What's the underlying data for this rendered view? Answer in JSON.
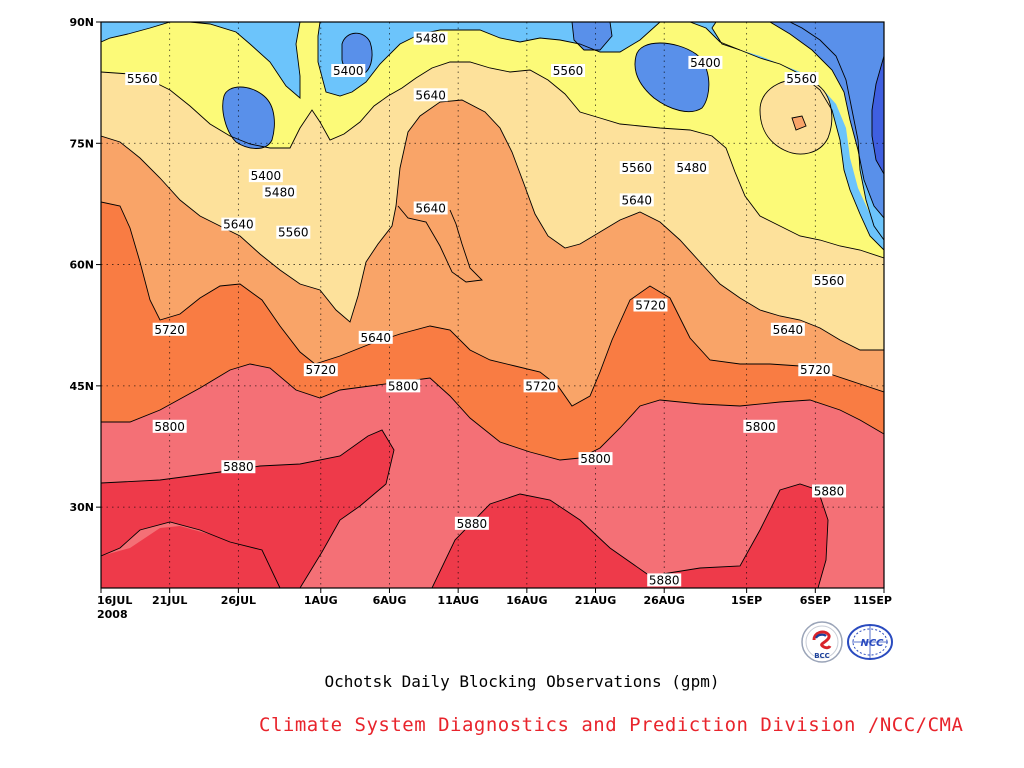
{
  "chart_data": {
    "type": "contour",
    "title": "Ochotsk Daily Blocking Observations (gpm)",
    "x_tick_labels": [
      "16JUL",
      "21JUL",
      "26JUL",
      "1AUG",
      "6AUG",
      "11AUG",
      "16AUG",
      "21AUG",
      "26AUG",
      "1SEP",
      "6SEP",
      "11SEP"
    ],
    "x_start_year": "2008",
    "x_range": [
      "2008-07-16",
      "2008-09-11"
    ],
    "y_tick_labels": [
      "90N",
      "75N",
      "60N",
      "45N",
      "30N"
    ],
    "y_range": [
      20,
      90
    ],
    "y_unit": "degrees latitude",
    "grid": true,
    "contour_levels": [
      5400,
      5480,
      5560,
      5640,
      5720,
      5800,
      5880
    ],
    "fill_colors": {
      "below_5400": "#3f5fe0",
      "5400_5480": "#5990ea",
      "5480_5560": "#6cc4fb",
      "5560_5640": "#fcfa78",
      "5640_5720": "#fde19b",
      "5720_5800": "#f9a468",
      "5800_5880": "#f97c43",
      "5880_5960": "#f47076",
      "above_5960": "#ee3a4a"
    },
    "contour_labels": [
      {
        "value": "5480",
        "date": "2008-08-09",
        "lat": 88
      },
      {
        "value": "5400",
        "date": "2008-08-03",
        "lat": 84
      },
      {
        "value": "5400",
        "date": "2008-08-29",
        "lat": 85
      },
      {
        "value": "5560",
        "date": "2008-07-19",
        "lat": 83
      },
      {
        "value": "5560",
        "date": "2008-08-19",
        "lat": 84
      },
      {
        "value": "5560",
        "date": "2008-09-05",
        "lat": 83
      },
      {
        "value": "5640",
        "date": "2008-08-09",
        "lat": 81
      },
      {
        "value": "5400",
        "date": "2008-07-28",
        "lat": 71
      },
      {
        "value": "5480",
        "date": "2008-07-29",
        "lat": 69
      },
      {
        "value": "5560",
        "date": "2008-08-24",
        "lat": 72
      },
      {
        "value": "5480",
        "date": "2008-08-28",
        "lat": 72
      },
      {
        "value": "5640",
        "date": "2008-07-26",
        "lat": 65
      },
      {
        "value": "5560",
        "date": "2008-07-30",
        "lat": 64
      },
      {
        "value": "5640",
        "date": "2008-08-09",
        "lat": 67
      },
      {
        "value": "5640",
        "date": "2008-08-24",
        "lat": 68
      },
      {
        "value": "5560",
        "date": "2008-09-07",
        "lat": 58
      },
      {
        "value": "5720",
        "date": "2008-08-25",
        "lat": 55
      },
      {
        "value": "5720",
        "date": "2008-07-21",
        "lat": 52
      },
      {
        "value": "5640",
        "date": "2008-08-05",
        "lat": 51
      },
      {
        "value": "5640",
        "date": "2008-09-04",
        "lat": 52
      },
      {
        "value": "5720",
        "date": "2008-08-01",
        "lat": 47
      },
      {
        "value": "5720",
        "date": "2008-09-06",
        "lat": 47
      },
      {
        "value": "5800",
        "date": "2008-08-07",
        "lat": 45
      },
      {
        "value": "5720",
        "date": "2008-08-17",
        "lat": 45
      },
      {
        "value": "5800",
        "date": "2008-07-21",
        "lat": 40
      },
      {
        "value": "5800",
        "date": "2008-09-02",
        "lat": 40
      },
      {
        "value": "5800",
        "date": "2008-08-21",
        "lat": 36
      },
      {
        "value": "5880",
        "date": "2008-07-26",
        "lat": 35
      },
      {
        "value": "5880",
        "date": "2008-09-07",
        "lat": 32
      },
      {
        "value": "5880",
        "date": "2008-08-12",
        "lat": 28
      },
      {
        "value": "5880",
        "date": "2008-08-26",
        "lat": 21
      }
    ]
  },
  "footer": {
    "subtitle": "Ochotsk Daily Blocking Observations (gpm)",
    "credit": "Climate System Diagnostics and Prediction Division /NCC/CMA"
  },
  "logos": {
    "bcc_text": "BCC",
    "ncc_text": "NCC"
  }
}
